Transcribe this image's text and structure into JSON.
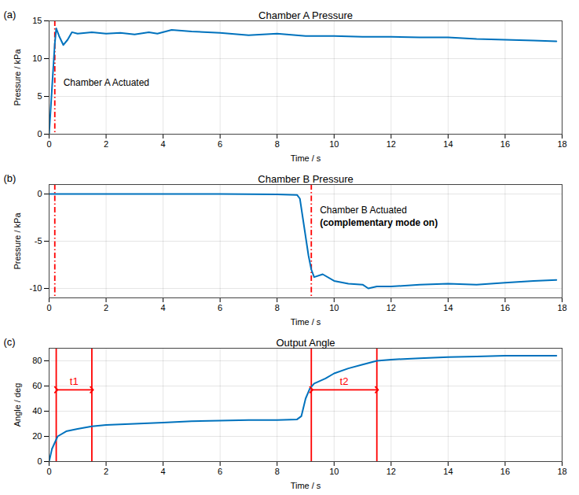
{
  "chart_data": [
    {
      "type": "line",
      "panel": "(a)",
      "title": "Chamber A Pressure",
      "x_label": "Time / s",
      "y_label": "Pressure / kPa",
      "color": "#0072bd",
      "x": [
        0,
        0.1,
        0.2,
        0.25,
        0.35,
        0.5,
        0.65,
        0.8,
        1,
        1.5,
        2,
        2.5,
        3,
        3.5,
        3.8,
        4.3,
        5,
        6,
        7,
        8,
        9,
        10,
        11,
        12,
        13,
        14,
        15,
        16,
        17,
        17.8
      ],
      "values": [
        0,
        6,
        12,
        14,
        13,
        11.8,
        12.5,
        13.5,
        13.3,
        13.5,
        13.3,
        13.4,
        13.2,
        13.5,
        13.3,
        13.8,
        13.6,
        13.4,
        13.1,
        13.3,
        13.0,
        13.0,
        12.9,
        12.9,
        12.8,
        12.8,
        12.6,
        12.5,
        12.4,
        12.3
      ],
      "xlim": [
        0,
        18
      ],
      "xticks": [
        0,
        2,
        4,
        6,
        8,
        10,
        12,
        14,
        16,
        18
      ],
      "ylim": [
        0,
        15
      ],
      "yticks": [
        0,
        5,
        10,
        15
      ],
      "grid": true,
      "vlines": [
        {
          "x": 0.2,
          "color": "#ff0000",
          "line_style": "dashdot"
        }
      ],
      "annotations": [
        {
          "lines": [
            "Chamber A Actuated"
          ],
          "x": 0.5,
          "y": 6.8
        }
      ]
    },
    {
      "type": "line",
      "panel": "(b)",
      "title": "Chamber B Pressure",
      "x_label": "Time / s",
      "y_label": "Pressure / kPa",
      "color": "#0072bd",
      "x": [
        0,
        2,
        4,
        6,
        8,
        8.7,
        8.8,
        8.9,
        9.0,
        9.1,
        9.2,
        9.3,
        9.6,
        10,
        10.5,
        11,
        11.2,
        11.5,
        12,
        13,
        14,
        15,
        16,
        17,
        17.8
      ],
      "values": [
        0,
        0,
        0,
        0,
        -0.05,
        -0.1,
        -0.5,
        -2.5,
        -4.5,
        -6.5,
        -8,
        -8.8,
        -8.5,
        -9.2,
        -9.5,
        -9.6,
        -10,
        -9.8,
        -9.8,
        -9.6,
        -9.5,
        -9.6,
        -9.4,
        -9.2,
        -9.1
      ],
      "xlim": [
        0,
        18
      ],
      "xticks": [
        0,
        2,
        4,
        6,
        8,
        10,
        12,
        14,
        16,
        18
      ],
      "ylim": [
        -11,
        1
      ],
      "yticks": [
        -10,
        -5,
        0
      ],
      "grid": true,
      "vlines": [
        {
          "x": 0.2,
          "color": "#ff0000",
          "line_style": "dashdot"
        },
        {
          "x": 9.2,
          "color": "#ff0000",
          "line_style": "dashdot"
        }
      ],
      "annotations": [
        {
          "lines": [
            "Chamber B Actuated",
            "(complementary mode on)"
          ],
          "x": 9.5,
          "y": -1.7
        }
      ]
    },
    {
      "type": "line",
      "panel": "(c)",
      "title": "Output Angle",
      "x_label": "Time / s",
      "y_label": "Angle / deg",
      "color": "#0072bd",
      "x": [
        0,
        0.1,
        0.3,
        0.6,
        1,
        1.5,
        2,
        3,
        4,
        5,
        6,
        7,
        8,
        8.7,
        8.85,
        9.0,
        9.15,
        9.3,
        9.7,
        10,
        10.5,
        11,
        11.5,
        12,
        13,
        14,
        15,
        16,
        17,
        17.8
      ],
      "values": [
        0,
        10,
        20,
        24,
        26,
        28,
        29,
        30,
        31,
        32,
        32.5,
        33,
        33,
        33.5,
        36,
        50,
        58,
        62,
        66,
        70,
        74,
        77,
        80,
        81,
        82,
        83,
        83.5,
        84,
        84,
        84
      ],
      "xlim": [
        0,
        18
      ],
      "xticks": [
        0,
        2,
        4,
        6,
        8,
        10,
        12,
        14,
        16,
        18
      ],
      "ylim": [
        0,
        90
      ],
      "yticks": [
        0,
        20,
        40,
        60,
        80
      ],
      "grid": true,
      "vlines": [
        {
          "x": 0.25,
          "color": "#ff0000",
          "line_style": "solid"
        },
        {
          "x": 1.5,
          "color": "#ff0000",
          "line_style": "solid"
        },
        {
          "x": 9.2,
          "color": "#ff0000",
          "line_style": "solid"
        },
        {
          "x": 11.5,
          "color": "#ff0000",
          "line_style": "solid"
        }
      ],
      "intervals": [
        {
          "label": "t1",
          "start": 0.25,
          "end": 1.5,
          "y": 57,
          "color": "#ff0000"
        },
        {
          "label": "t2",
          "start": 9.2,
          "end": 11.5,
          "y": 57,
          "color": "#ff0000"
        }
      ]
    }
  ]
}
